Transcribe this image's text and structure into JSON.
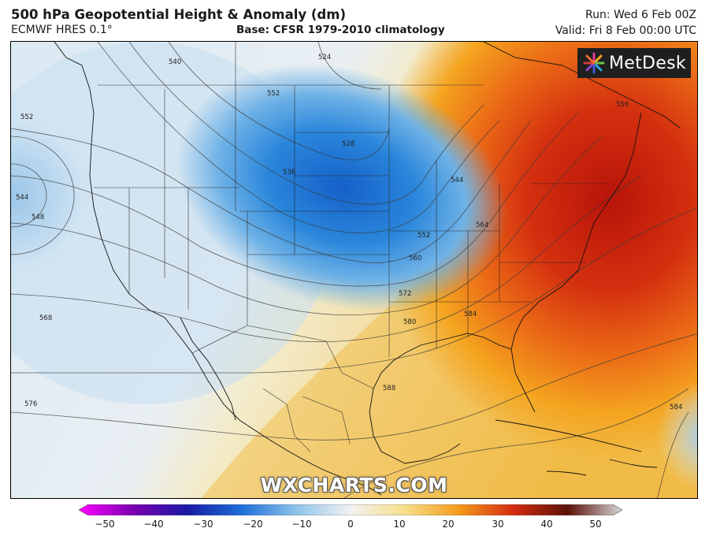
{
  "header": {
    "title": "500 hPa Geopotential Height & Anomaly (dm)",
    "model": "ECMWF HRES 0.1°",
    "base": "Base: CFSR 1979-2010 climatology",
    "run": "Run: Wed 6 Feb 00Z",
    "valid": "Valid: Fri 8 Feb 00:00 UTC"
  },
  "logo": {
    "brand": "MetDesk"
  },
  "watermark": "WXCHARTS.COM",
  "map": {
    "field": "500 hPa geopotential height anomaly (dm)",
    "contour_labels": [
      "524",
      "540",
      "552",
      "552",
      "536",
      "528",
      "544",
      "548",
      "544",
      "552",
      "560",
      "564",
      "568",
      "572",
      "580",
      "584",
      "556",
      "588",
      "576",
      "584"
    ],
    "anomaly_features": [
      {
        "type": "trough",
        "region": "Northern Plains / Upper Midwest",
        "anomaly_dm": -20
      },
      {
        "type": "ridge",
        "region": "Eastern US / Northeast",
        "anomaly_dm": 30
      },
      {
        "type": "low",
        "region": "Eastern Pacific west of Oregon",
        "anomaly_dm": -10
      }
    ]
  },
  "colorbar": {
    "ticks": [
      "−50",
      "−40",
      "−30",
      "−20",
      "−10",
      "0",
      "10",
      "20",
      "30",
      "40",
      "50"
    ],
    "min": -50,
    "max": 50,
    "colors": {
      "neg50": "#ff00ff",
      "neg40": "#7a00b0",
      "neg30": "#1a1aa6",
      "neg20": "#1e6fd8",
      "neg10": "#8ec4ea",
      "zero": "#f2f2f2",
      "pos10": "#f6e08a",
      "pos20": "#f39a1a",
      "pos30": "#d42c10",
      "pos40": "#5a1208",
      "pos50": "#d8d8d8"
    }
  }
}
